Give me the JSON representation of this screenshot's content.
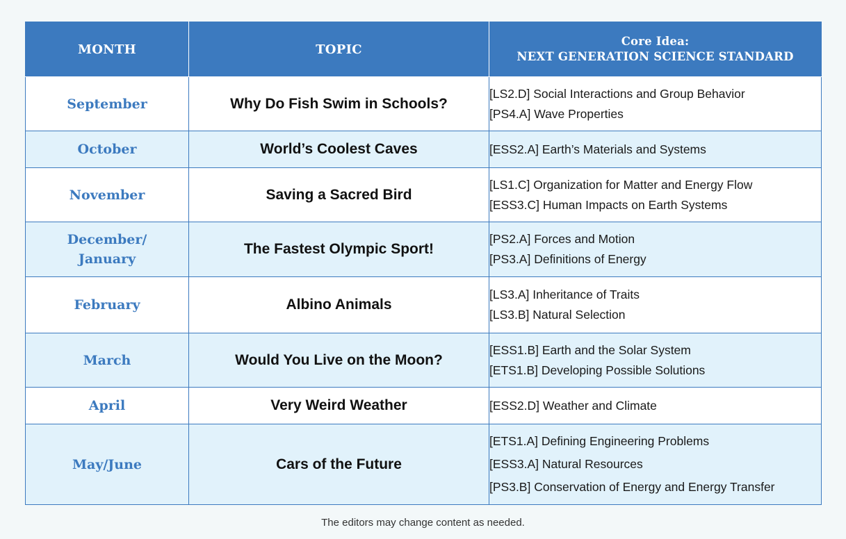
{
  "header": {
    "month": "MONTH",
    "topic": "TOPIC",
    "core_idea": "Core Idea:",
    "standard": "NEXT GENERATION SCIENCE STANDARD"
  },
  "rows": [
    {
      "month": [
        "September"
      ],
      "topic": "Why Do Fish Swim in Schools?",
      "standards": [
        "[LS2.D] Social Interactions and Group Behavior",
        "[PS4.A] Wave Properties"
      ]
    },
    {
      "month": [
        "October"
      ],
      "topic": "World’s Coolest Caves",
      "standards": [
        "[ESS2.A] Earth’s Materials and Systems"
      ]
    },
    {
      "month": [
        "November"
      ],
      "topic": "Saving a Sacred Bird",
      "standards": [
        "[LS1.C] Organization for Matter and Energy Flow",
        "[ESS3.C] Human Impacts on Earth Systems"
      ]
    },
    {
      "month": [
        "December/",
        "January"
      ],
      "topic": "The Fastest Olympic Sport!",
      "standards": [
        "[PS2.A] Forces and Motion",
        "[PS3.A] Definitions of Energy"
      ]
    },
    {
      "month": [
        "February"
      ],
      "topic": "Albino Animals",
      "standards": [
        "[LS3.A] Inheritance of Traits",
        "[LS3.B] Natural Selection"
      ]
    },
    {
      "month": [
        "March"
      ],
      "topic": "Would You Live on the Moon?",
      "standards": [
        "[ESS1.B] Earth and the Solar System",
        "[ETS1.B] Developing Possible Solutions"
      ]
    },
    {
      "month": [
        "April"
      ],
      "topic": "Very Weird Weather",
      "standards": [
        "[ESS2.D] Weather and Climate"
      ]
    },
    {
      "month": [
        "May/June"
      ],
      "topic": "Cars of the Future",
      "standards": [
        "[ETS1.A] Defining Engineering Problems",
        "[ESS3.A] Natural Resources",
        "[PS3.B] Conservation of Energy and Energy Transfer"
      ]
    }
  ],
  "footer_note": "The editors may change content as needed."
}
